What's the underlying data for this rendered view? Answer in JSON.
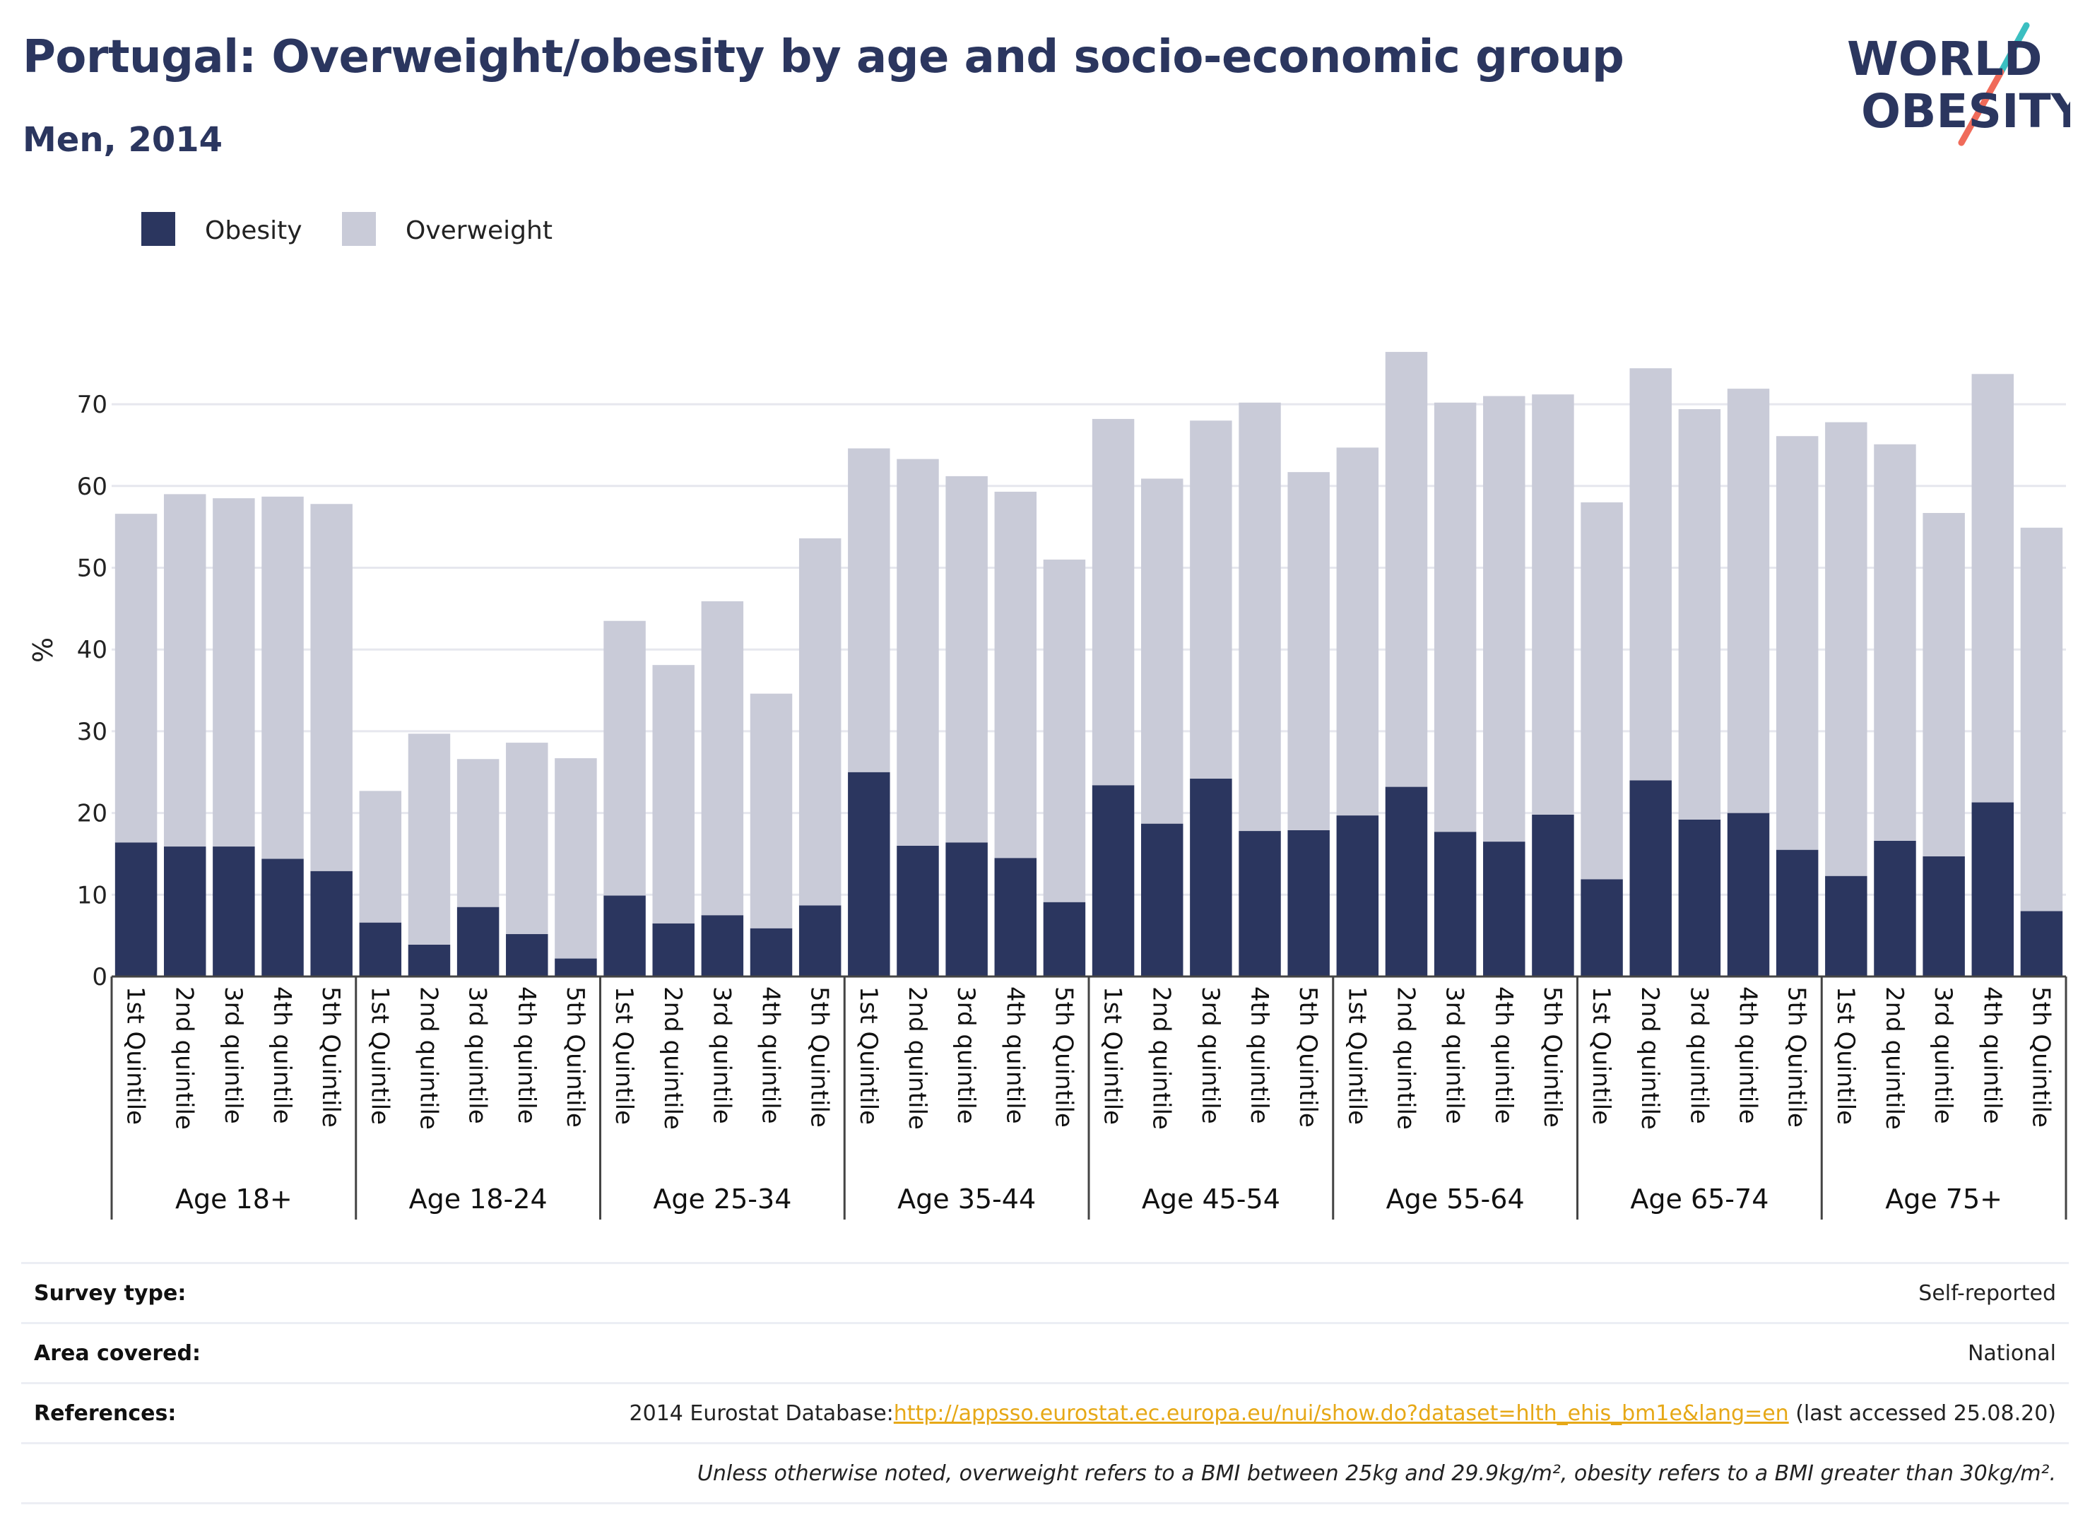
{
  "title": "Portugal: Overweight/obesity by age and socio-economic group",
  "subtitle": "Men, 2014",
  "logo": {
    "line1": "WORLD",
    "line2": "OBESITY",
    "accent_colors": [
      "#3bbfc1",
      "#f06b5a"
    ]
  },
  "legend": [
    {
      "label": "Obesity",
      "color": "#2b365f"
    },
    {
      "label": "Overweight",
      "color": "#c9cbd8"
    }
  ],
  "info": {
    "survey_type": {
      "label": "Survey type:",
      "value": "Self-reported"
    },
    "area_covered": {
      "label": "Area covered:",
      "value": "National"
    },
    "references": {
      "label": "References:",
      "prefix": "2014 Eurostat Database:",
      "link": "http://appsso.eurostat.ec.europa.eu/nui/show.do?dataset=hlth_ehis_bm1e&lang=en",
      "suffix": " (last accessed 25.08.20)"
    },
    "note": "Unless otherwise noted, overweight refers to a BMI between 25kg and 29.9kg/m², obesity refers to a BMI greater than 30kg/m²."
  },
  "chart_data": {
    "type": "bar",
    "stacked": true,
    "ylabel": "%",
    "ylim": [
      0,
      78
    ],
    "yticks": [
      0,
      10,
      20,
      30,
      40,
      50,
      60,
      70
    ],
    "grid": true,
    "legend_position": "top-left",
    "groups": [
      {
        "name": "Age 18+",
        "categories": [
          "1st Quintile",
          "2nd quintile",
          "3rd quintile",
          "4th quintile",
          "5th Quintile"
        ],
        "obesity": [
          16.4,
          15.9,
          15.9,
          14.4,
          12.9
        ],
        "overweight": [
          40.2,
          43.1,
          42.6,
          44.3,
          44.9
        ]
      },
      {
        "name": "Age 18-24",
        "categories": [
          "1st Quintile",
          "2nd quintile",
          "3rd quintile",
          "4th quintile",
          "5th Quintile"
        ],
        "obesity": [
          6.6,
          3.9,
          8.5,
          5.2,
          2.2
        ],
        "overweight": [
          16.1,
          25.8,
          18.1,
          23.4,
          24.5
        ]
      },
      {
        "name": "Age 25-34",
        "categories": [
          "1st Quintile",
          "2nd quintile",
          "3rd quintile",
          "4th quintile",
          "5th Quintile"
        ],
        "obesity": [
          9.9,
          6.5,
          7.5,
          5.9,
          8.7
        ],
        "overweight": [
          33.6,
          31.6,
          38.4,
          28.7,
          44.9
        ]
      },
      {
        "name": "Age 35-44",
        "categories": [
          "1st Quintile",
          "2nd quintile",
          "3rd quintile",
          "4th quintile",
          "5th Quintile"
        ],
        "obesity": [
          25.0,
          16.0,
          16.4,
          14.5,
          9.1
        ],
        "overweight": [
          39.6,
          47.3,
          44.8,
          44.8,
          41.9
        ]
      },
      {
        "name": "Age 45-54",
        "categories": [
          "1st Quintile",
          "2nd quintile",
          "3rd quintile",
          "4th quintile",
          "5th Quintile"
        ],
        "obesity": [
          23.4,
          18.7,
          24.2,
          17.8,
          17.9
        ],
        "overweight": [
          44.8,
          42.2,
          43.8,
          52.4,
          43.8
        ]
      },
      {
        "name": "Age 55-64",
        "categories": [
          "1st Quintile",
          "2nd quintile",
          "3rd quintile",
          "4th quintile",
          "5th Quintile"
        ],
        "obesity": [
          19.7,
          23.2,
          17.7,
          16.5,
          19.8
        ],
        "overweight": [
          45.0,
          53.2,
          52.5,
          54.5,
          51.4
        ]
      },
      {
        "name": "Age 65-74",
        "categories": [
          "1st Quintile",
          "2nd quintile",
          "3rd quintile",
          "4th quintile",
          "5th Quintile"
        ],
        "obesity": [
          11.9,
          24.0,
          19.2,
          20.0,
          15.5
        ],
        "overweight": [
          46.1,
          50.4,
          50.2,
          51.9,
          50.6
        ]
      },
      {
        "name": "Age 75+",
        "categories": [
          "1st Quintile",
          "2nd quintile",
          "3rd quintile",
          "4th quintile",
          "5th Quintile"
        ],
        "obesity": [
          12.3,
          16.6,
          14.7,
          21.3,
          8.0
        ],
        "overweight": [
          55.5,
          48.5,
          42.0,
          52.4,
          46.9
        ]
      }
    ]
  }
}
